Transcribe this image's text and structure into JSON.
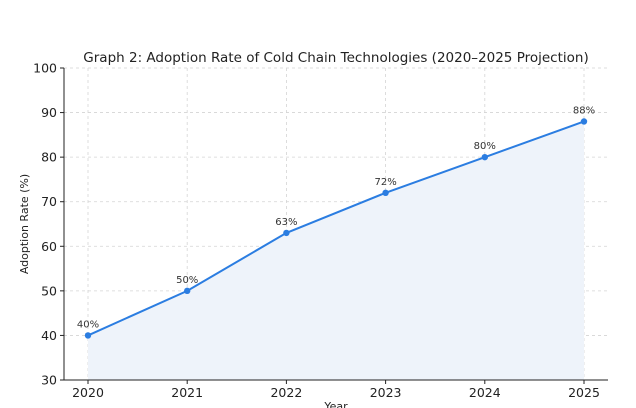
{
  "chart_data": {
    "type": "line",
    "title": "Graph 2: Adoption Rate of Cold Chain Technologies (2020–2025 Projection)",
    "xlabel": "Year",
    "ylabel": "Adoption Rate (%)",
    "x": [
      "2020",
      "2021",
      "2022",
      "2023",
      "2024",
      "2025"
    ],
    "series": [
      {
        "name": "Adoption Rate",
        "values": [
          40,
          50,
          63,
          72,
          80,
          88
        ],
        "data_labels": [
          "40%",
          "50%",
          "63%",
          "72%",
          "80%",
          "88%"
        ],
        "color": "#2b7de1",
        "fill_color": "#eef3fa"
      }
    ],
    "ylim": [
      30,
      100
    ],
    "yticks": [
      "30",
      "40",
      "50",
      "60",
      "70",
      "80",
      "90",
      "100"
    ],
    "grid": true,
    "area_fill": true
  }
}
